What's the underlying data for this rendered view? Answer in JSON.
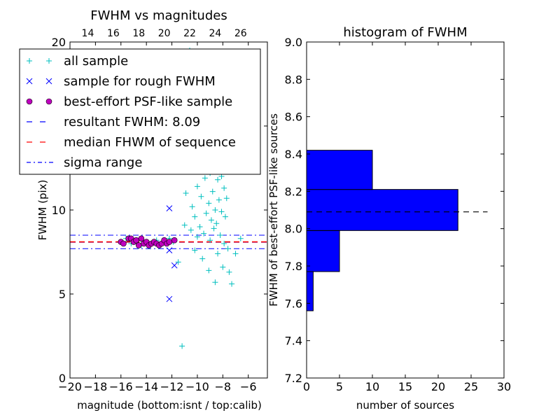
{
  "chart_data": [
    {
      "type": "scatter",
      "title": "FWHM vs magnitudes",
      "xlabel": "magnitude (bottom:isnt / top:calib)",
      "ylabel": "FWHM (pix)",
      "xlim": [
        -20,
        -4.5
      ],
      "ylim": [
        0,
        20
      ],
      "xticks": [
        "−20",
        "−18",
        "−16",
        "−14",
        "−12",
        "−10",
        "−8",
        "−6"
      ],
      "xticks_values": [
        -20,
        -18,
        -16,
        -14,
        -12,
        -10,
        -8,
        -6
      ],
      "top_xticks": [
        "14",
        "16",
        "18",
        "20",
        "22",
        "24",
        "26"
      ],
      "top_xticks_calib_values": [
        14,
        16,
        18,
        20,
        22,
        24,
        26
      ],
      "top_xticks_positions": [
        -18.6,
        -16.6,
        -14.6,
        -12.6,
        -10.6,
        -8.6,
        -6.6
      ],
      "yticks": [
        "0",
        "5",
        "10",
        "15",
        "20"
      ],
      "yticks_values": [
        0,
        5,
        10,
        15,
        20
      ],
      "legend": {
        "placement": "upper-left",
        "entries": [
          {
            "label": "all sample",
            "marker": "+",
            "color": "#00bfbf"
          },
          {
            "label": "sample for rough FWHM",
            "marker": "x",
            "color": "#0000ff"
          },
          {
            "label": "best-effort PSF-like sample",
            "marker": "o",
            "color": "#bf00bf"
          },
          {
            "label": "resultant FWHM: 8.09",
            "line": "dashed",
            "color": "#0000ff"
          },
          {
            "label": "median FHWM of sequence",
            "line": "dashed",
            "color": "#ff0000"
          },
          {
            "label": "sigma range",
            "line": "dashdot",
            "color": "#0000ff"
          }
        ]
      },
      "series": [
        {
          "name": "all sample",
          "marker": "+",
          "color": "#00bfbf",
          "points": [
            [
              -16.0,
              8.1
            ],
            [
              -15.6,
              8.3
            ],
            [
              -15.2,
              8.0
            ],
            [
              -14.8,
              8.2
            ],
            [
              -14.4,
              7.9
            ],
            [
              -14.0,
              8.1
            ],
            [
              -13.6,
              8.0
            ],
            [
              -13.2,
              8.2
            ],
            [
              -12.8,
              8.1
            ],
            [
              -12.4,
              8.0
            ],
            [
              -12.2,
              8.3
            ],
            [
              -11.9,
              8.1
            ],
            [
              -11.5,
              6.9
            ],
            [
              -11.2,
              1.9
            ],
            [
              -11.0,
              9.1
            ],
            [
              -10.9,
              11.0
            ],
            [
              -10.7,
              12.5
            ],
            [
              -10.5,
              8.8
            ],
            [
              -10.4,
              10.2
            ],
            [
              -10.2,
              9.6
            ],
            [
              -10.0,
              11.4
            ],
            [
              -10.0,
              8.4
            ],
            [
              -9.9,
              12.9
            ],
            [
              -9.8,
              9.0
            ],
            [
              -9.7,
              10.8
            ],
            [
              -9.6,
              13.8
            ],
            [
              -9.5,
              8.6
            ],
            [
              -9.4,
              11.9
            ],
            [
              -9.3,
              9.8
            ],
            [
              -9.2,
              14.6
            ],
            [
              -9.1,
              10.4
            ],
            [
              -9.0,
              8.2
            ],
            [
              -9.0,
              12.2
            ],
            [
              -8.9,
              15.1
            ],
            [
              -8.9,
              9.4
            ],
            [
              -8.8,
              11.1
            ],
            [
              -8.8,
              13.3
            ],
            [
              -8.7,
              8.9
            ],
            [
              -8.7,
              14.2
            ],
            [
              -8.6,
              10.0
            ],
            [
              -8.6,
              12.6
            ],
            [
              -8.5,
              16.0
            ],
            [
              -8.5,
              9.2
            ],
            [
              -8.4,
              11.8
            ],
            [
              -8.4,
              7.4
            ],
            [
              -8.3,
              13.6
            ],
            [
              -8.3,
              10.6
            ],
            [
              -8.2,
              17.4
            ],
            [
              -8.2,
              8.5
            ],
            [
              -8.1,
              12.0
            ],
            [
              -8.1,
              9.9
            ],
            [
              -8.0,
              14.9
            ],
            [
              -8.0,
              6.6
            ],
            [
              -7.9,
              11.3
            ],
            [
              -7.9,
              8.0
            ],
            [
              -7.8,
              13.0
            ],
            [
              -7.8,
              9.6
            ],
            [
              -7.7,
              10.7
            ],
            [
              -7.6,
              7.7
            ],
            [
              -7.5,
              6.3
            ],
            [
              -7.3,
              5.6
            ],
            [
              -7.0,
              7.4
            ],
            [
              -6.6,
              8.3
            ],
            [
              -8.6,
              5.7
            ],
            [
              -9.1,
              6.4
            ],
            [
              -9.6,
              7.1
            ],
            [
              -10.2,
              7.6
            ],
            [
              -8.4,
              19.4
            ],
            [
              -10.6,
              19.5
            ],
            [
              -11.6,
              19.3
            ],
            [
              -9.8,
              18.2
            ],
            [
              -8.9,
              17.9
            ],
            [
              -11.3,
              16.8
            ],
            [
              -10.7,
              15.9
            ],
            [
              -9.2,
              16.5
            ]
          ]
        },
        {
          "name": "sample for rough FWHM",
          "marker": "x",
          "color": "#0000ff",
          "points": [
            [
              -12.2,
              10.1
            ],
            [
              -12.2,
              7.6
            ],
            [
              -11.8,
              6.7
            ],
            [
              -12.2,
              4.7
            ]
          ]
        },
        {
          "name": "best-effort PSF-like sample",
          "marker": "o",
          "color": "#bf00bf",
          "points": [
            [
              -16.0,
              8.1
            ],
            [
              -15.8,
              8.0
            ],
            [
              -15.4,
              8.3
            ],
            [
              -15.2,
              8.3
            ],
            [
              -15.0,
              8.1
            ],
            [
              -14.8,
              8.2
            ],
            [
              -14.6,
              7.9
            ],
            [
              -14.4,
              8.3
            ],
            [
              -14.2,
              8.0
            ],
            [
              -14.0,
              8.1
            ],
            [
              -13.8,
              7.9
            ],
            [
              -13.6,
              8.0
            ],
            [
              -13.4,
              8.1
            ],
            [
              -13.2,
              8.0
            ],
            [
              -13.0,
              7.9
            ],
            [
              -12.8,
              8.0
            ],
            [
              -12.6,
              8.2
            ],
            [
              -12.4,
              8.0
            ],
            [
              -12.2,
              8.1
            ],
            [
              -11.8,
              8.2
            ]
          ]
        }
      ],
      "hlines": [
        {
          "name": "resultant FWHM: 8.09",
          "y": 8.09,
          "style": "dashed",
          "color": "#0000ff"
        },
        {
          "name": "median FHWM of sequence",
          "y": 8.1,
          "style": "dashed",
          "color": "#ff0000"
        },
        {
          "name": "sigma range",
          "y": 8.5,
          "style": "dashdot",
          "color": "#0000ff"
        },
        {
          "name": "sigma range",
          "y": 7.7,
          "style": "dashdot",
          "color": "#0000ff"
        }
      ]
    },
    {
      "type": "bar",
      "orientation": "horizontal",
      "title": "histogram of FWHM",
      "xlabel": "number of sources",
      "ylabel": "FWHM of best-effort PSF-like sources",
      "xlim": [
        0,
        30
      ],
      "ylim": [
        7.2,
        9.0
      ],
      "xticks": [
        "0",
        "5",
        "10",
        "15",
        "20",
        "25",
        "30"
      ],
      "xticks_values": [
        0,
        5,
        10,
        15,
        20,
        25,
        30
      ],
      "yticks": [
        "7.2",
        "7.4",
        "7.6",
        "7.8",
        "8.0",
        "8.2",
        "8.4",
        "8.6",
        "8.8",
        "9.0"
      ],
      "yticks_values": [
        7.2,
        7.4,
        7.6,
        7.8,
        8.0,
        8.2,
        8.4,
        8.6,
        8.8,
        9.0
      ],
      "bar_color": "#0000ff",
      "bins": [
        {
          "from": 7.56,
          "to": 7.77,
          "count": 1
        },
        {
          "from": 7.77,
          "to": 7.99,
          "count": 5
        },
        {
          "from": 7.99,
          "to": 8.21,
          "count": 23
        },
        {
          "from": 8.21,
          "to": 8.42,
          "count": 10
        }
      ],
      "hline": {
        "y": 8.09,
        "style": "dashed",
        "color": "#000000",
        "x_range": [
          0,
          27.5
        ]
      }
    }
  ]
}
